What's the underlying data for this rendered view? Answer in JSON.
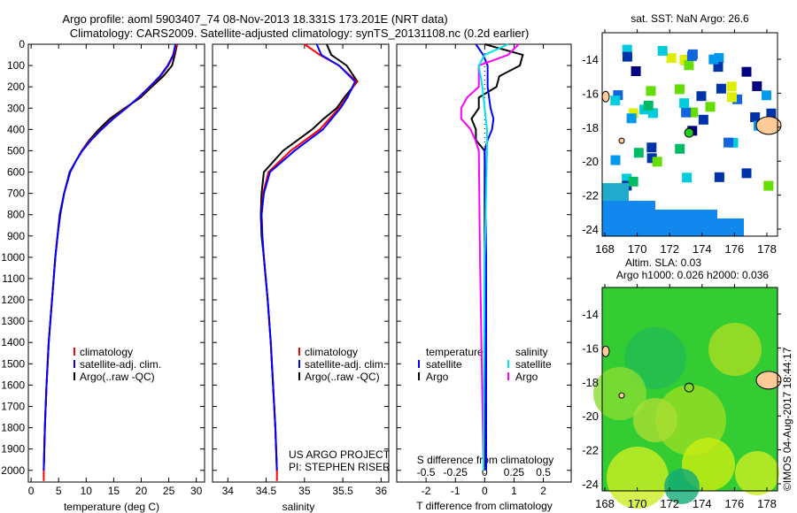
{
  "title_line1": "Argo profile: aoml 5903407_74 08-Nov-2013 18.331S 173.201E (NRT data)",
  "title_line2": "Climatology: CARS2009. Satellite-adjusted climatology: synTS_20131108.nc (0.2d earlier)",
  "credits": {
    "project": "US ARGO PROJECT",
    "pi": "PI: STEPHEN RISER"
  },
  "timestamp": "©IMOS 04-Aug-2017 18:44:17",
  "colors": {
    "climatology": "#ff0000",
    "satellite": "#0000ff",
    "argo": "#000000",
    "sal_satellite": "#00e5ee",
    "sal_argo": "#ff00ff",
    "land": "#ffcc99"
  },
  "chart_data": [
    {
      "type": "line",
      "title": "",
      "xlabel": "temperature (deg C)",
      "ylabel": "",
      "xlim": [
        -0.5,
        31.5
      ],
      "ylim": [
        2055,
        0
      ],
      "xticks": [
        0,
        5,
        10,
        15,
        20,
        25,
        30
      ],
      "yticks": [
        0,
        100,
        200,
        300,
        400,
        500,
        600,
        700,
        800,
        900,
        1000,
        1100,
        1200,
        1300,
        1400,
        1500,
        1600,
        1700,
        1800,
        1900,
        2000
      ],
      "legend": [
        "climatology",
        "satellite-adj. clim.",
        "Argo(..raw -QC)"
      ],
      "legend_position": "center",
      "series": [
        {
          "name": "climatology",
          "depth": [
            0,
            50,
            100,
            150,
            200,
            250,
            300,
            350,
            400,
            450,
            500,
            550,
            600,
            700,
            800,
            900,
            1000,
            1200,
            1400,
            1600,
            1800,
            2000,
            2050
          ],
          "values": [
            26.4,
            25.9,
            24.9,
            23.5,
            21.6,
            19.6,
            17.2,
            14.8,
            12.7,
            10.8,
            9.2,
            8.1,
            7.1,
            6.0,
            5.2,
            4.8,
            4.4,
            3.8,
            3.2,
            2.8,
            2.5,
            2.3,
            2.3
          ]
        },
        {
          "name": "satellite-adj. clim.",
          "depth": [
            0,
            50,
            100,
            150,
            200,
            250,
            300,
            350,
            400,
            450,
            500,
            550,
            600,
            700,
            800,
            900,
            1000,
            1200,
            1400,
            1600,
            1800,
            2000
          ],
          "values": [
            26.2,
            25.8,
            24.8,
            23.4,
            21.5,
            19.5,
            17.3,
            14.9,
            12.8,
            10.9,
            9.3,
            8.1,
            7.1,
            6.0,
            5.2,
            4.8,
            4.4,
            3.8,
            3.2,
            2.8,
            2.5,
            2.3
          ]
        },
        {
          "name": "Argo(..raw -QC)",
          "depth": [
            0,
            50,
            100,
            150,
            200,
            250,
            300,
            350,
            400,
            450,
            500,
            550,
            600,
            700,
            800,
            900,
            1000,
            1200,
            1400,
            1600,
            1800,
            2000
          ],
          "values": [
            26.5,
            26.1,
            25.6,
            24.0,
            21.9,
            19.9,
            17.0,
            14.3,
            12.3,
            10.6,
            9.2,
            8.1,
            7.0,
            6.0,
            5.3,
            4.8,
            4.4,
            3.8,
            3.2,
            2.8,
            2.5,
            2.3
          ]
        }
      ]
    },
    {
      "type": "line",
      "xlabel": "salinity",
      "xlim": [
        33.8,
        36.1
      ],
      "ylim": [
        2055,
        0
      ],
      "xticks": [
        "34",
        "34.5",
        "35",
        "35.5",
        "36"
      ],
      "legend": [
        "climatology",
        "satellite-adj. clim.",
        "Argo(..raw -QC)"
      ],
      "legend_position": "center",
      "series": [
        {
          "name": "climatology",
          "depth": [
            0,
            50,
            100,
            175,
            250,
            300,
            400,
            500,
            600,
            700,
            800,
            900,
            1000,
            1200,
            1400,
            1600,
            1800,
            2000,
            2050
          ],
          "values": [
            35.0,
            35.2,
            35.45,
            35.68,
            35.55,
            35.45,
            35.2,
            34.82,
            34.53,
            34.46,
            34.44,
            34.45,
            34.47,
            34.52,
            34.56,
            34.59,
            34.62,
            34.64,
            34.64
          ]
        },
        {
          "name": "satellite-adj. clim.",
          "depth": [
            0,
            50,
            100,
            175,
            250,
            300,
            400,
            500,
            600,
            700,
            800,
            900,
            1000,
            1200,
            1400,
            1600,
            1800,
            2000
          ],
          "values": [
            35.16,
            35.22,
            35.45,
            35.66,
            35.56,
            35.47,
            35.24,
            34.87,
            34.55,
            34.47,
            34.44,
            34.45,
            34.47,
            34.52,
            34.56,
            34.59,
            34.62,
            34.64
          ]
        },
        {
          "name": "Argo(..raw -QC)",
          "depth": [
            0,
            50,
            100,
            175,
            250,
            300,
            350,
            400,
            500,
            600,
            700,
            800,
            900,
            1000,
            1200,
            1400,
            1600,
            1800,
            2000
          ],
          "values": [
            35.29,
            35.35,
            35.55,
            35.69,
            35.52,
            35.42,
            35.25,
            35.1,
            34.72,
            34.47,
            34.44,
            34.43,
            34.44,
            34.47,
            34.52,
            34.56,
            34.59,
            34.62,
            34.64
          ]
        }
      ]
    },
    {
      "type": "line",
      "xlabel": "T difference from climatology",
      "xlabel_top": "S difference from climatology",
      "xlim": [
        -3,
        2.95
      ],
      "xticks": [
        "-2",
        "-1",
        "0",
        "1",
        "2"
      ],
      "xticks_s": [
        "-0.5",
        "-0.25",
        "0",
        "0.25",
        "0.5"
      ],
      "ylim": [
        2055,
        0
      ],
      "legend_titles": [
        "temperature",
        "salinity"
      ],
      "legend": [
        "satellite",
        "Argo",
        "satellite",
        "Argo"
      ],
      "series": [
        {
          "name": "temperature satellite",
          "units": "T",
          "depth": [
            0,
            50,
            100,
            200,
            300,
            350,
            400,
            450,
            500,
            1000,
            2000
          ],
          "values": [
            -0.3,
            -0.05,
            0.1,
            0.1,
            0.2,
            0.3,
            0.25,
            0.1,
            0.0,
            0.05,
            0.05
          ]
        },
        {
          "name": "temperature Argo",
          "units": "T",
          "depth": [
            0,
            50,
            100,
            150,
            200,
            250,
            300,
            350,
            400,
            450,
            500,
            1000,
            2000
          ],
          "values": [
            0.0,
            1.3,
            1.2,
            0.5,
            0.4,
            -0.2,
            -0.2,
            -0.45,
            -0.3,
            -0.3,
            0.0,
            0.0,
            0.0
          ]
        },
        {
          "name": "salinity satellite",
          "units": "S",
          "depth": [
            0,
            50,
            100,
            200,
            300,
            400,
            500,
            1000,
            2000
          ],
          "values": [
            0.2,
            0.0,
            -0.05,
            -0.02,
            0.0,
            0.02,
            0.02,
            0.0,
            -0.01
          ]
        },
        {
          "name": "salinity Argo",
          "units": "S",
          "depth": [
            0,
            50,
            100,
            200,
            250,
            300,
            350,
            400,
            450,
            500,
            1000,
            2000
          ],
          "values": [
            0.29,
            0.2,
            -0.05,
            -0.05,
            -0.15,
            -0.2,
            -0.2,
            -0.12,
            -0.08,
            -0.05,
            -0.04,
            -0.01
          ]
        }
      ]
    },
    {
      "type": "heatmap",
      "title": "sat. SST: NaN Argo: 26.6",
      "xlim": [
        168,
        178.6
      ],
      "ylim": [
        -24.4,
        -12.4
      ],
      "xticks": [
        "168",
        "170",
        "172",
        "174",
        "176",
        "178"
      ],
      "yticks": [
        "-14",
        "-16",
        "-18",
        "-20",
        "-22",
        "-24"
      ],
      "argo_position": [
        173.2,
        -18.33
      ]
    },
    {
      "type": "heatmap",
      "title": "Altim. SLA: 0.03",
      "subtitle": "Argo h1000: 0.026 h2000: 0.036",
      "xlim": [
        168,
        178.6
      ],
      "ylim": [
        -24.4,
        -12.4
      ],
      "xticks": [
        "168",
        "170",
        "172",
        "174",
        "176",
        "178"
      ],
      "yticks": [
        "-14",
        "-16",
        "-18",
        "-20",
        "-22",
        "-24"
      ],
      "argo_position": [
        173.2,
        -18.33
      ]
    }
  ]
}
